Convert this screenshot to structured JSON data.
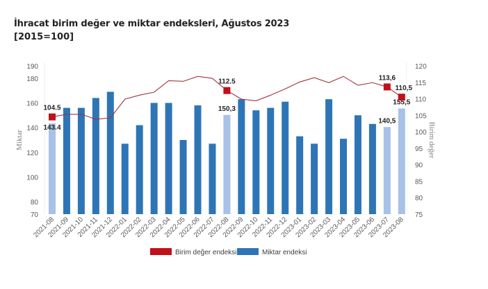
{
  "chart_data": {
    "type": "bar+line",
    "title": "İhracat birim değer ve miktar endeksleri, Ağustos 2023",
    "subtitle": "[2015=100]",
    "categories": [
      "2021-08",
      "2021-09",
      "2021-10",
      "2021-11",
      "2021-12",
      "2022-01",
      "2022-02",
      "2022-03",
      "2022-04",
      "2022-05",
      "2022-06",
      "2022-07",
      "2022-08",
      "2022-09",
      "2022-10",
      "2022-11",
      "2022-12",
      "2023-01",
      "2023-02",
      "2023-03",
      "2023-04",
      "2023-05",
      "2023-06",
      "2023-07",
      "2023-08"
    ],
    "series": [
      {
        "name": "Miktar endeksi",
        "type": "bar",
        "axis": "left",
        "color": "#2E75B6",
        "highlight_color": "#A9C1E6",
        "highlighted": [
          0,
          12,
          23,
          24
        ],
        "values": [
          143.4,
          156,
          156,
          164,
          169,
          127,
          142,
          160,
          160,
          130,
          158,
          127,
          150.3,
          163,
          154,
          156,
          161,
          133,
          127,
          163,
          131,
          150,
          143,
          140.5,
          155.5
        ],
        "labels": {
          "0": "143.4",
          "12": "150,3",
          "23": "140,5",
          "24": "155,5"
        }
      },
      {
        "name": "Birim değer endeksi",
        "type": "line",
        "axis": "right",
        "color": "#A3323D",
        "marker_color": "#C0101A",
        "markers": [
          0,
          12,
          23,
          24
        ],
        "values": [
          104.5,
          105.3,
          105.3,
          103.8,
          104.2,
          109.9,
          111.1,
          112.0,
          115.5,
          115.3,
          116.8,
          116.2,
          112.5,
          109.9,
          109.4,
          111.1,
          113.0,
          115.1,
          116.4,
          114.9,
          116.8,
          114.1,
          114.9,
          113.6,
          110.5
        ],
        "labels": {
          "0": "104.5",
          "12": "112.5",
          "23": "113,6",
          "24": "110,5"
        }
      }
    ],
    "y_left": {
      "label": "Miktar",
      "range": [
        70,
        190
      ],
      "ticks": [
        70,
        80,
        100,
        120,
        140,
        160,
        180,
        190
      ]
    },
    "y_right": {
      "label": "Birim değer",
      "range": [
        75,
        120
      ],
      "ticks": [
        75,
        80,
        85,
        90,
        95,
        100,
        105,
        110,
        115,
        120
      ]
    },
    "grid": false,
    "legend": {
      "position": "bottom",
      "entries": [
        "Birim değer endeksi",
        "Miktar endeksi"
      ]
    }
  }
}
